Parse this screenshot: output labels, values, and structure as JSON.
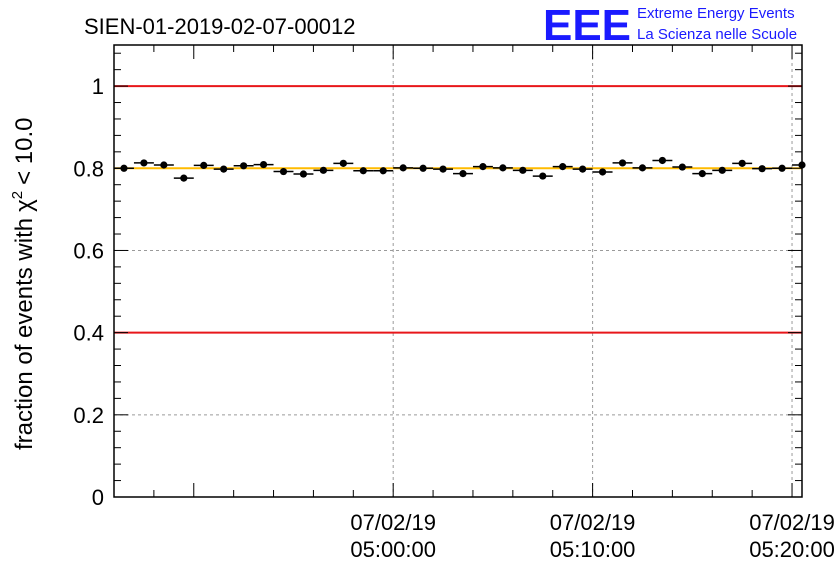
{
  "chart_data": {
    "type": "scatter",
    "title": "SIEN-01-2019-02-07-00012",
    "ylabel_main": "fraction of events with",
    "ylabel_chi": "χ",
    "ylabel_sup": "2",
    "ylabel_tail": "< 10.0",
    "xlabel": "",
    "x_unit": "minutes since 04:50:00",
    "xlim": [
      -4,
      30.5
    ],
    "ylim": [
      0,
      1.1
    ],
    "yticks": [
      0,
      0.2,
      0.4,
      0.6,
      0.8,
      1
    ],
    "ytick_labels": [
      "0",
      "0.2",
      "0.4",
      "0.6",
      "0.8",
      "1"
    ],
    "xticks": [
      {
        "x": 10,
        "date": "07/02/19",
        "time": "05:00:00"
      },
      {
        "x": 20,
        "date": "07/02/19",
        "time": "05:10:00"
      },
      {
        "x": 30,
        "date": "07/02/19",
        "time": "05:20:00"
      }
    ],
    "reference_lines": [
      {
        "y": 1.0,
        "color": "#e8161a"
      },
      {
        "y": 0.8,
        "color": "#ffbb00"
      },
      {
        "y": 0.4,
        "color": "#e8161a"
      }
    ],
    "grid": true,
    "series": [
      {
        "name": "fraction",
        "color": "#000000",
        "x_halfwidth": 0.5,
        "x": [
          -3.5,
          -2.5,
          -1.5,
          -0.5,
          0.5,
          1.5,
          2.5,
          3.5,
          4.5,
          5.5,
          6.5,
          7.5,
          8.5,
          9.5,
          10.5,
          11.5,
          12.5,
          13.5,
          14.5,
          15.5,
          16.5,
          17.5,
          18.5,
          19.5,
          20.5,
          21.5,
          22.5,
          23.5,
          24.5,
          25.5,
          26.5,
          27.5,
          28.5,
          29.5,
          30.5
        ],
        "y": [
          0.8,
          0.813,
          0.808,
          0.776,
          0.807,
          0.798,
          0.806,
          0.809,
          0.792,
          0.786,
          0.795,
          0.812,
          0.794,
          0.794,
          0.801,
          0.8,
          0.798,
          0.787,
          0.804,
          0.801,
          0.795,
          0.781,
          0.804,
          0.798,
          0.791,
          0.813,
          0.801,
          0.819,
          0.803,
          0.787,
          0.795,
          0.812,
          0.799,
          0.8,
          0.808
        ],
        "err": [
          0.006,
          0.006,
          0.006,
          0.006,
          0.006,
          0.006,
          0.006,
          0.006,
          0.006,
          0.006,
          0.006,
          0.006,
          0.006,
          0.006,
          0.006,
          0.006,
          0.006,
          0.006,
          0.006,
          0.006,
          0.006,
          0.006,
          0.006,
          0.006,
          0.006,
          0.006,
          0.006,
          0.006,
          0.006,
          0.006,
          0.006,
          0.006,
          0.006,
          0.006,
          0.006
        ]
      }
    ]
  },
  "logo": {
    "mark": "EEE",
    "line1": "Extreme Energy Events",
    "line2": "La Scienza nelle Scuole"
  }
}
